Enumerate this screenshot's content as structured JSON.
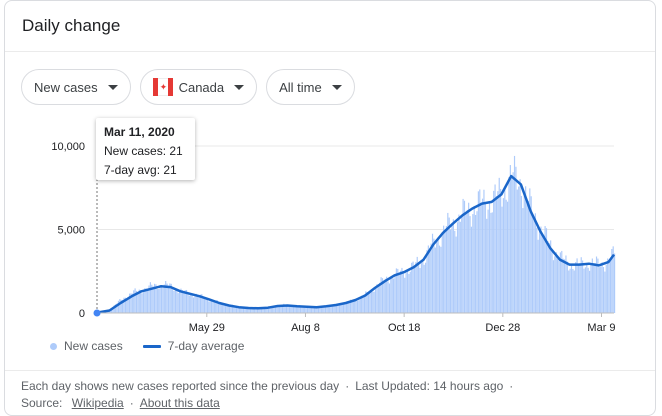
{
  "card": {
    "title": "Daily change"
  },
  "filters": {
    "metric": "New cases",
    "country": "Canada",
    "range": "All time"
  },
  "tooltip": {
    "date": "Mar 11, 2020",
    "new_cases": "New cases: 21",
    "avg": "7-day avg: 21"
  },
  "legend": {
    "bars": "New cases",
    "line": "7-day average"
  },
  "footer": {
    "line1_text": "Each day shows new cases reported since the previous day",
    "line1_updated": "Last Updated: 14 hours ago",
    "source_label": "Source:",
    "source_link": "Wikipedia",
    "about_link": "About this data"
  },
  "colors": {
    "bar": "#aecbfa",
    "line": "#1a66c9",
    "grid": "#e8e8e8"
  },
  "chart_data": {
    "type": "bar",
    "title": "",
    "xlabel": "",
    "ylabel": "",
    "ylim": [
      0,
      10500
    ],
    "y_ticks": [
      "0",
      "5,000",
      "10,000"
    ],
    "x_ticks": [
      "May 29",
      "Aug 8",
      "Oct 18",
      "Dec 28",
      "Mar 9"
    ],
    "grid": true,
    "legend": "bottom-left",
    "series": [
      {
        "name": "New cases",
        "kind": "bar",
        "points": [
          [
            "2020-03-11",
            21
          ],
          [
            "2020-03-20",
            200
          ],
          [
            "2020-03-28",
            800
          ],
          [
            "2020-04-05",
            1200
          ],
          [
            "2020-04-12",
            1400
          ],
          [
            "2020-04-19",
            1600
          ],
          [
            "2020-04-26",
            1700
          ],
          [
            "2020-05-03",
            1600
          ],
          [
            "2020-05-10",
            1300
          ],
          [
            "2020-05-17",
            1150
          ],
          [
            "2020-05-24",
            1000
          ],
          [
            "2020-05-31",
            800
          ],
          [
            "2020-06-07",
            600
          ],
          [
            "2020-06-14",
            450
          ],
          [
            "2020-06-21",
            350
          ],
          [
            "2020-06-28",
            300
          ],
          [
            "2020-07-05",
            280
          ],
          [
            "2020-07-12",
            350
          ],
          [
            "2020-07-19",
            450
          ],
          [
            "2020-07-26",
            480
          ],
          [
            "2020-08-02",
            400
          ],
          [
            "2020-08-09",
            380
          ],
          [
            "2020-08-16",
            350
          ],
          [
            "2020-08-23",
            400
          ],
          [
            "2020-08-30",
            500
          ],
          [
            "2020-09-06",
            600
          ],
          [
            "2020-09-13",
            800
          ],
          [
            "2020-09-20",
            1100
          ],
          [
            "2020-09-27",
            1600
          ],
          [
            "2020-10-04",
            2000
          ],
          [
            "2020-10-11",
            2300
          ],
          [
            "2020-10-18",
            2500
          ],
          [
            "2020-10-25",
            2800
          ],
          [
            "2020-11-01",
            3300
          ],
          [
            "2020-11-08",
            4200
          ],
          [
            "2020-11-15",
            4900
          ],
          [
            "2020-11-22",
            5400
          ],
          [
            "2020-11-29",
            5900
          ],
          [
            "2020-12-06",
            6300
          ],
          [
            "2020-12-13",
            6600
          ],
          [
            "2020-12-20",
            6700
          ],
          [
            "2020-12-27",
            7200
          ],
          [
            "2021-01-03",
            8200
          ],
          [
            "2021-01-10",
            7800
          ],
          [
            "2021-01-17",
            6200
          ],
          [
            "2021-01-24",
            5000
          ],
          [
            "2021-01-31",
            4000
          ],
          [
            "2021-02-07",
            3300
          ],
          [
            "2021-02-14",
            2900
          ],
          [
            "2021-02-21",
            2900
          ],
          [
            "2021-02-28",
            3000
          ],
          [
            "2021-03-07",
            2900
          ],
          [
            "2021-03-14",
            3100
          ],
          [
            "2021-03-18",
            3600
          ]
        ]
      },
      {
        "name": "7-day average",
        "kind": "line",
        "points": [
          [
            "2020-03-11",
            21
          ],
          [
            "2020-03-20",
            150
          ],
          [
            "2020-03-28",
            600
          ],
          [
            "2020-04-05",
            1000
          ],
          [
            "2020-04-12",
            1300
          ],
          [
            "2020-04-19",
            1450
          ],
          [
            "2020-04-26",
            1600
          ],
          [
            "2020-05-03",
            1550
          ],
          [
            "2020-05-10",
            1300
          ],
          [
            "2020-05-17",
            1150
          ],
          [
            "2020-05-24",
            1000
          ],
          [
            "2020-05-31",
            800
          ],
          [
            "2020-06-07",
            600
          ],
          [
            "2020-06-14",
            450
          ],
          [
            "2020-06-21",
            350
          ],
          [
            "2020-06-28",
            300
          ],
          [
            "2020-07-05",
            280
          ],
          [
            "2020-07-12",
            320
          ],
          [
            "2020-07-19",
            420
          ],
          [
            "2020-07-26",
            450
          ],
          [
            "2020-08-02",
            400
          ],
          [
            "2020-08-09",
            380
          ],
          [
            "2020-08-16",
            350
          ],
          [
            "2020-08-23",
            400
          ],
          [
            "2020-08-30",
            480
          ],
          [
            "2020-09-06",
            600
          ],
          [
            "2020-09-13",
            780
          ],
          [
            "2020-09-20",
            1050
          ],
          [
            "2020-09-27",
            1500
          ],
          [
            "2020-10-04",
            1900
          ],
          [
            "2020-10-11",
            2250
          ],
          [
            "2020-10-18",
            2450
          ],
          [
            "2020-10-25",
            2750
          ],
          [
            "2020-11-01",
            3200
          ],
          [
            "2020-11-08",
            4100
          ],
          [
            "2020-11-15",
            4800
          ],
          [
            "2020-11-22",
            5350
          ],
          [
            "2020-11-29",
            5850
          ],
          [
            "2020-12-06",
            6250
          ],
          [
            "2020-12-13",
            6550
          ],
          [
            "2020-12-20",
            6650
          ],
          [
            "2020-12-27",
            7100
          ],
          [
            "2021-01-03",
            8200
          ],
          [
            "2021-01-10",
            7700
          ],
          [
            "2021-01-17",
            6100
          ],
          [
            "2021-01-24",
            4900
          ],
          [
            "2021-01-31",
            3900
          ],
          [
            "2021-02-07",
            3200
          ],
          [
            "2021-02-14",
            2900
          ],
          [
            "2021-02-21",
            2900
          ],
          [
            "2021-02-28",
            2950
          ],
          [
            "2021-03-07",
            2850
          ],
          [
            "2021-03-14",
            3050
          ],
          [
            "2021-03-18",
            3500
          ]
        ]
      }
    ]
  }
}
